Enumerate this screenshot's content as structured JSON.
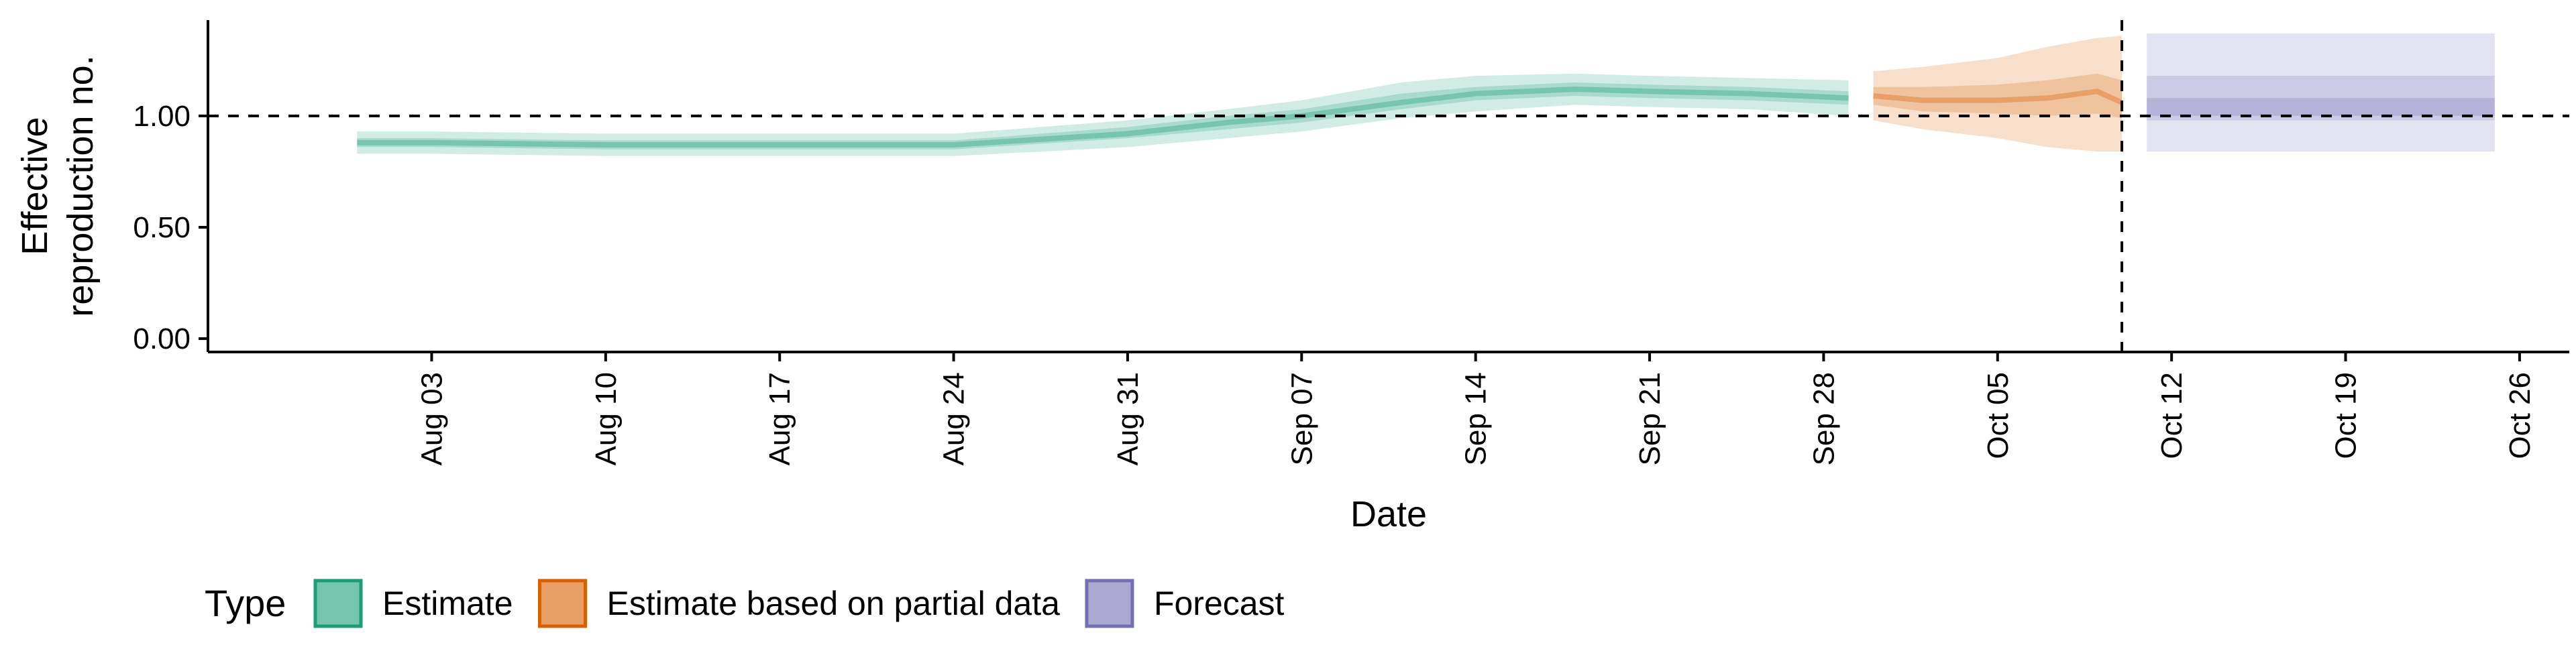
{
  "chart_data": {
    "type": "area",
    "title": "",
    "xlabel": "Date",
    "ylabel_lines": [
      "Effective",
      "reproduction no."
    ],
    "ylim": [
      -0.06,
      1.43
    ],
    "y_ticks": [
      {
        "value": 0.0,
        "label": "0.00"
      },
      {
        "value": 0.5,
        "label": "0.50"
      },
      {
        "value": 1.0,
        "label": "1.00"
      }
    ],
    "x_start": "2020-07-25",
    "x_end": "2020-10-28",
    "x_ticks": [
      {
        "date": "2020-08-03",
        "label": "Aug 03"
      },
      {
        "date": "2020-08-10",
        "label": "Aug 10"
      },
      {
        "date": "2020-08-17",
        "label": "Aug 17"
      },
      {
        "date": "2020-08-24",
        "label": "Aug 24"
      },
      {
        "date": "2020-08-31",
        "label": "Aug 31"
      },
      {
        "date": "2020-09-07",
        "label": "Sep 07"
      },
      {
        "date": "2020-09-14",
        "label": "Sep 14"
      },
      {
        "date": "2020-09-21",
        "label": "Sep 21"
      },
      {
        "date": "2020-09-28",
        "label": "Sep 28"
      },
      {
        "date": "2020-10-05",
        "label": "Oct 05"
      },
      {
        "date": "2020-10-12",
        "label": "Oct 12"
      },
      {
        "date": "2020-10-19",
        "label": "Oct 19"
      },
      {
        "date": "2020-10-26",
        "label": "Oct 26"
      }
    ],
    "reference_line_y": 1.0,
    "reference_line_x": "2020-10-10",
    "grid": false,
    "legend": {
      "title": "Type",
      "placement": "bottom-left",
      "entries": [
        "Estimate",
        "Estimate based on partial data",
        "Forecast"
      ]
    },
    "series": [
      {
        "name": "Estimate",
        "color_fill": "#1b9e77",
        "color_line": "#1b9e77",
        "points": [
          {
            "date": "2020-07-31",
            "median": 0.88,
            "lo50": 0.86,
            "hi50": 0.9,
            "lo90": 0.83,
            "hi90": 0.93
          },
          {
            "date": "2020-08-03",
            "median": 0.88,
            "lo50": 0.86,
            "hi50": 0.9,
            "lo90": 0.83,
            "hi90": 0.93
          },
          {
            "date": "2020-08-10",
            "median": 0.87,
            "lo50": 0.85,
            "hi50": 0.89,
            "lo90": 0.82,
            "hi90": 0.92
          },
          {
            "date": "2020-08-17",
            "median": 0.87,
            "lo50": 0.85,
            "hi50": 0.89,
            "lo90": 0.82,
            "hi90": 0.92
          },
          {
            "date": "2020-08-24",
            "median": 0.87,
            "lo50": 0.85,
            "hi50": 0.89,
            "lo90": 0.82,
            "hi90": 0.92
          },
          {
            "date": "2020-08-31",
            "median": 0.92,
            "lo50": 0.9,
            "hi50": 0.95,
            "lo90": 0.86,
            "hi90": 0.98
          },
          {
            "date": "2020-09-04",
            "median": 0.97,
            "lo50": 0.94,
            "hi50": 1.0,
            "lo90": 0.9,
            "hi90": 1.03
          },
          {
            "date": "2020-09-07",
            "median": 1.0,
            "lo50": 0.97,
            "hi50": 1.03,
            "lo90": 0.93,
            "hi90": 1.07
          },
          {
            "date": "2020-09-11",
            "median": 1.06,
            "lo50": 1.03,
            "hi50": 1.1,
            "lo90": 0.99,
            "hi90": 1.15
          },
          {
            "date": "2020-09-14",
            "median": 1.1,
            "lo50": 1.07,
            "hi50": 1.13,
            "lo90": 1.02,
            "hi90": 1.18
          },
          {
            "date": "2020-09-18",
            "median": 1.12,
            "lo50": 1.09,
            "hi50": 1.15,
            "lo90": 1.05,
            "hi90": 1.19
          },
          {
            "date": "2020-09-21",
            "median": 1.11,
            "lo50": 1.08,
            "hi50": 1.14,
            "lo90": 1.04,
            "hi90": 1.18
          },
          {
            "date": "2020-09-25",
            "median": 1.1,
            "lo50": 1.07,
            "hi50": 1.13,
            "lo90": 1.03,
            "hi90": 1.17
          },
          {
            "date": "2020-09-29",
            "median": 1.08,
            "lo50": 1.05,
            "hi50": 1.11,
            "lo90": 1.0,
            "hi90": 1.16
          }
        ]
      },
      {
        "name": "Estimate based on partial data",
        "color_fill": "#d95f02",
        "color_line": "#d95f02",
        "points": [
          {
            "date": "2020-09-30",
            "median": 1.09,
            "lo50": 1.05,
            "hi50": 1.13,
            "lo90": 0.98,
            "hi90": 1.2
          },
          {
            "date": "2020-10-02",
            "median": 1.07,
            "lo50": 1.02,
            "hi50": 1.13,
            "lo90": 0.94,
            "hi90": 1.22
          },
          {
            "date": "2020-10-05",
            "median": 1.07,
            "lo50": 1.01,
            "hi50": 1.14,
            "lo90": 0.9,
            "hi90": 1.26
          },
          {
            "date": "2020-10-07",
            "median": 1.08,
            "lo50": 1.0,
            "hi50": 1.16,
            "lo90": 0.86,
            "hi90": 1.31
          },
          {
            "date": "2020-10-09",
            "median": 1.11,
            "lo50": 1.01,
            "hi50": 1.19,
            "lo90": 0.84,
            "hi90": 1.35
          },
          {
            "date": "2020-10-10",
            "median": 1.06,
            "lo50": 0.99,
            "hi50": 1.16,
            "lo90": 0.84,
            "hi90": 1.36
          }
        ]
      },
      {
        "name": "Forecast",
        "color_fill": "#7570b3",
        "color_line": "#7570b3",
        "points": [
          {
            "date": "2020-10-11",
            "median": 1.04,
            "lo50": 1.0,
            "hi50": 1.08,
            "lo90": 0.84,
            "hi90": 1.37
          },
          {
            "date": "2020-10-25",
            "median": 1.04,
            "lo50": 1.0,
            "hi50": 1.08,
            "lo90": 0.84,
            "hi90": 1.37
          }
        ],
        "band_extra": {
          "lo": 0.98,
          "hi": 1.18
        }
      }
    ]
  }
}
